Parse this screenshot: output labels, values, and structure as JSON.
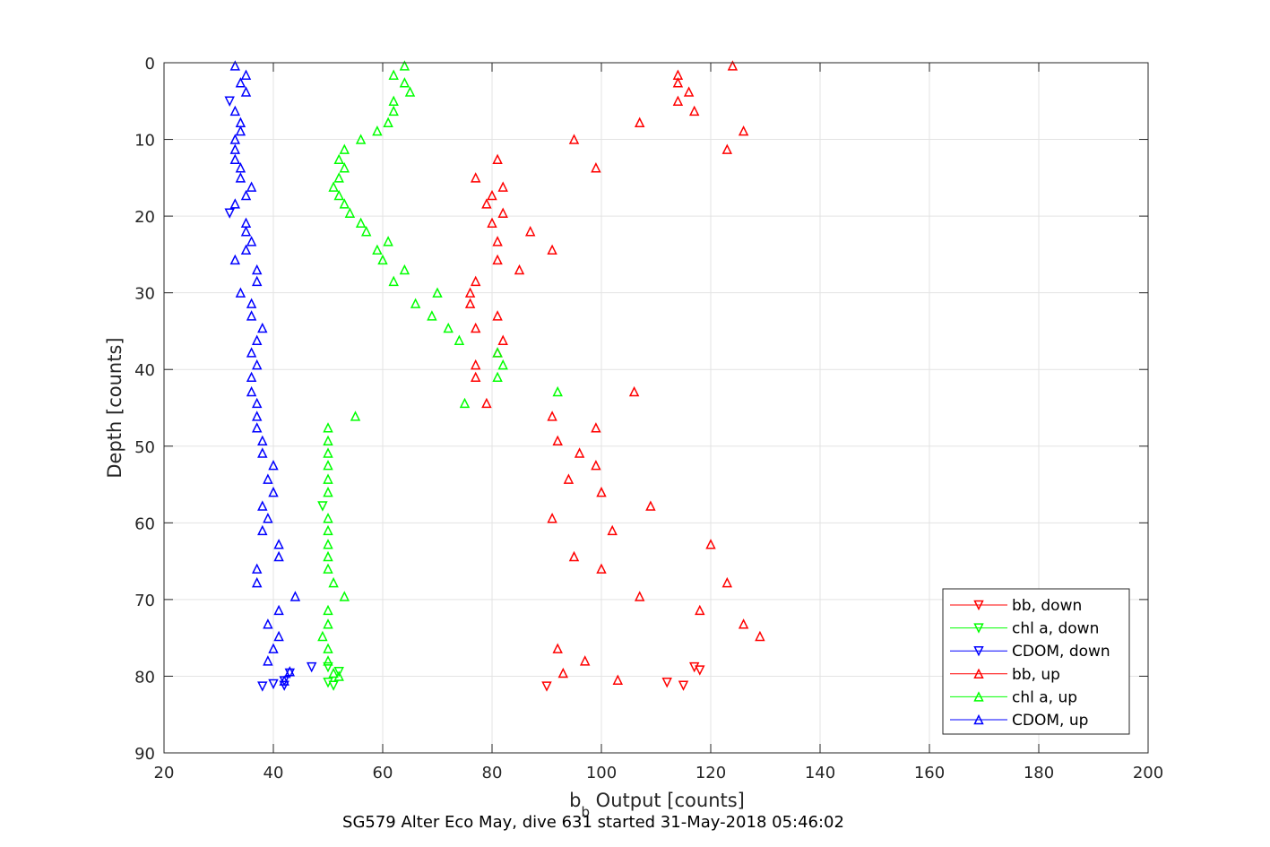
{
  "chart_data": {
    "type": "scatter",
    "xlabel_main": "b",
    "xlabel_sub": "b",
    "xlabel_rest": " Output [counts]",
    "ylabel": "Depth [counts]",
    "caption": "SG579 Alter Eco May, dive 631 started 31-May-2018 05:46:02",
    "xlim": [
      20,
      200
    ],
    "ylim": [
      0,
      90
    ],
    "y_reversed": true,
    "grid": true,
    "legend_position": "bottom-right",
    "x_ticks": [
      "20",
      "40",
      "60",
      "80",
      "100",
      "120",
      "140",
      "160",
      "180",
      "200"
    ],
    "y_ticks": [
      "0",
      "10",
      "20",
      "30",
      "40",
      "50",
      "60",
      "70",
      "80",
      "90"
    ],
    "series": [
      {
        "name": "bb, down",
        "color": "#ff0000",
        "marker": "triangle-down",
        "points": [
          [
            117,
            78.8
          ],
          [
            118,
            79.2
          ],
          [
            112,
            80.8
          ],
          [
            115,
            81.2
          ],
          [
            90,
            81.3
          ]
        ]
      },
      {
        "name": "chl a, down",
        "color": "#00ff00",
        "marker": "triangle-down",
        "points": [
          [
            50,
            78.8
          ],
          [
            52,
            79.4
          ],
          [
            50,
            80.8
          ],
          [
            51,
            81.2
          ],
          [
            49,
            57.8
          ]
        ]
      },
      {
        "name": "CDOM, down",
        "color": "#0000ff",
        "marker": "triangle-down",
        "points": [
          [
            47,
            78.8
          ],
          [
            43,
            79.6
          ],
          [
            42,
            80.6
          ],
          [
            40,
            81.0
          ],
          [
            42,
            81.2
          ],
          [
            38,
            81.3
          ],
          [
            32,
            5.0
          ],
          [
            32,
            19.6
          ]
        ]
      },
      {
        "name": "bb, up",
        "color": "#ff0000",
        "marker": "triangle-up",
        "points": [
          [
            124,
            0.4
          ],
          [
            114,
            1.6
          ],
          [
            114,
            2.6
          ],
          [
            116,
            3.8
          ],
          [
            114,
            5.0
          ],
          [
            117,
            6.3
          ],
          [
            107,
            7.8
          ],
          [
            126,
            8.9
          ],
          [
            95,
            10.0
          ],
          [
            123,
            11.3
          ],
          [
            81,
            12.6
          ],
          [
            99,
            13.7
          ],
          [
            77,
            15.0
          ],
          [
            82,
            16.2
          ],
          [
            80,
            17.3
          ],
          [
            79,
            18.4
          ],
          [
            82,
            19.6
          ],
          [
            80,
            20.9
          ],
          [
            87,
            22.0
          ],
          [
            81,
            23.3
          ],
          [
            91,
            24.4
          ],
          [
            81,
            25.7
          ],
          [
            85,
            27.0
          ],
          [
            77,
            28.5
          ],
          [
            76,
            30.0
          ],
          [
            76,
            31.4
          ],
          [
            81,
            33.0
          ],
          [
            77,
            34.6
          ],
          [
            82,
            36.2
          ],
          [
            81,
            37.8
          ],
          [
            77,
            39.4
          ],
          [
            77,
            41.0
          ],
          [
            106,
            42.9
          ],
          [
            79,
            44.4
          ],
          [
            91,
            46.1
          ],
          [
            99,
            47.6
          ],
          [
            92,
            49.3
          ],
          [
            96,
            50.9
          ],
          [
            99,
            52.5
          ],
          [
            94,
            54.3
          ],
          [
            100,
            56.0
          ],
          [
            109,
            57.8
          ],
          [
            91,
            59.4
          ],
          [
            102,
            61.0
          ],
          [
            120,
            62.8
          ],
          [
            95,
            64.4
          ],
          [
            100,
            66.0
          ],
          [
            123,
            67.8
          ],
          [
            107,
            69.6
          ],
          [
            118,
            71.4
          ],
          [
            126,
            73.2
          ],
          [
            129,
            74.8
          ],
          [
            92,
            76.4
          ],
          [
            97,
            78.0
          ],
          [
            93,
            79.6
          ],
          [
            103,
            80.5
          ]
        ]
      },
      {
        "name": "chl a, up",
        "color": "#00ff00",
        "marker": "triangle-up",
        "points": [
          [
            64,
            0.4
          ],
          [
            62,
            1.6
          ],
          [
            64,
            2.6
          ],
          [
            65,
            3.8
          ],
          [
            62,
            5.0
          ],
          [
            62,
            6.3
          ],
          [
            61,
            7.8
          ],
          [
            59,
            8.9
          ],
          [
            56,
            10.0
          ],
          [
            53,
            11.3
          ],
          [
            52,
            12.6
          ],
          [
            53,
            13.7
          ],
          [
            52,
            15.0
          ],
          [
            51,
            16.2
          ],
          [
            52,
            17.3
          ],
          [
            53,
            18.4
          ],
          [
            54,
            19.6
          ],
          [
            56,
            20.9
          ],
          [
            57,
            22.0
          ],
          [
            61,
            23.3
          ],
          [
            59,
            24.4
          ],
          [
            60,
            25.7
          ],
          [
            64,
            27.0
          ],
          [
            62,
            28.5
          ],
          [
            70,
            30.0
          ],
          [
            66,
            31.4
          ],
          [
            69,
            33.0
          ],
          [
            72,
            34.6
          ],
          [
            74,
            36.2
          ],
          [
            81,
            37.8
          ],
          [
            82,
            39.4
          ],
          [
            81,
            41.0
          ],
          [
            92,
            42.9
          ],
          [
            75,
            44.4
          ],
          [
            55,
            46.1
          ],
          [
            50,
            47.6
          ],
          [
            50,
            49.3
          ],
          [
            50,
            50.9
          ],
          [
            50,
            52.5
          ],
          [
            50,
            54.3
          ],
          [
            50,
            56.0
          ],
          [
            50,
            59.4
          ],
          [
            50,
            61.0
          ],
          [
            50,
            62.8
          ],
          [
            50,
            64.4
          ],
          [
            50,
            66.0
          ],
          [
            51,
            67.8
          ],
          [
            53,
            69.6
          ],
          [
            50,
            71.4
          ],
          [
            50,
            73.2
          ],
          [
            49,
            74.8
          ],
          [
            50,
            76.4
          ],
          [
            50,
            78.0
          ],
          [
            51,
            79.6
          ],
          [
            52,
            80.0
          ]
        ]
      },
      {
        "name": "CDOM, up",
        "color": "#0000ff",
        "marker": "triangle-up",
        "points": [
          [
            33,
            0.4
          ],
          [
            35,
            1.6
          ],
          [
            34,
            2.6
          ],
          [
            35,
            3.8
          ],
          [
            33,
            6.3
          ],
          [
            34,
            7.8
          ],
          [
            34,
            8.9
          ],
          [
            33,
            10.0
          ],
          [
            33,
            11.3
          ],
          [
            33,
            12.6
          ],
          [
            34,
            13.7
          ],
          [
            34,
            15.0
          ],
          [
            36,
            16.2
          ],
          [
            35,
            17.3
          ],
          [
            33,
            18.4
          ],
          [
            35,
            20.9
          ],
          [
            35,
            22.0
          ],
          [
            36,
            23.3
          ],
          [
            35,
            24.4
          ],
          [
            33,
            25.7
          ],
          [
            37,
            27.0
          ],
          [
            37,
            28.5
          ],
          [
            34,
            30.0
          ],
          [
            36,
            31.4
          ],
          [
            36,
            33.0
          ],
          [
            38,
            34.6
          ],
          [
            37,
            36.2
          ],
          [
            36,
            37.8
          ],
          [
            37,
            39.4
          ],
          [
            36,
            41.0
          ],
          [
            36,
            42.9
          ],
          [
            37,
            44.4
          ],
          [
            37,
            46.1
          ],
          [
            37,
            47.6
          ],
          [
            38,
            49.3
          ],
          [
            38,
            50.9
          ],
          [
            40,
            52.5
          ],
          [
            39,
            54.3
          ],
          [
            40,
            56.0
          ],
          [
            38,
            57.8
          ],
          [
            39,
            59.4
          ],
          [
            38,
            61.0
          ],
          [
            41,
            62.8
          ],
          [
            41,
            64.4
          ],
          [
            37,
            66.0
          ],
          [
            37,
            67.8
          ],
          [
            44,
            69.6
          ],
          [
            41,
            71.4
          ],
          [
            39,
            73.2
          ],
          [
            41,
            74.8
          ],
          [
            40,
            76.4
          ],
          [
            39,
            78.0
          ],
          [
            43,
            79.4
          ],
          [
            42,
            80.6
          ]
        ]
      }
    ]
  }
}
